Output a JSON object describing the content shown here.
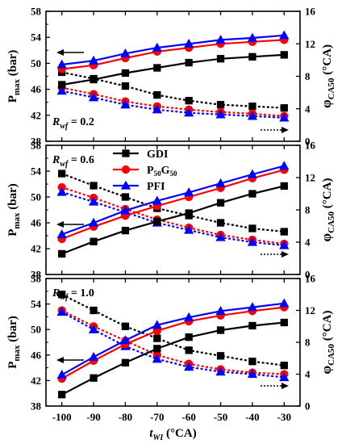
{
  "chart_data": [
    {
      "type": "line",
      "panel": 1,
      "annotation": "R",
      "annotation_sub": "wf",
      "annotation_value": " = 0.2",
      "x": [
        -100,
        -90,
        -80,
        -70,
        -60,
        -50,
        -40,
        -30
      ],
      "series": [
        {
          "name": "GDI",
          "axis": "left",
          "style": "solid",
          "color": "#000000",
          "marker": "square",
          "values": [
            46.7,
            47.5,
            48.5,
            49.3,
            50.1,
            50.7,
            51.0,
            51.3
          ]
        },
        {
          "name": "P50G50",
          "axis": "left",
          "style": "solid",
          "color": "#ff0000",
          "marker": "circle",
          "values": [
            49.1,
            49.7,
            50.8,
            51.8,
            52.4,
            53.0,
            53.3,
            53.6
          ]
        },
        {
          "name": "PFI",
          "axis": "left",
          "style": "solid",
          "color": "#0000ff",
          "marker": "triangle",
          "values": [
            49.8,
            50.4,
            51.5,
            52.4,
            53.0,
            53.6,
            53.9,
            54.3
          ]
        },
        {
          "name": "GDI",
          "axis": "right",
          "style": "dotted",
          "color": "#000000",
          "marker": "square",
          "values": [
            8.5,
            7.7,
            6.8,
            5.7,
            5.0,
            4.5,
            4.3,
            4.1
          ]
        },
        {
          "name": "P50G50",
          "axis": "right",
          "style": "dotted",
          "color": "#ff0000",
          "marker": "circle",
          "values": [
            6.6,
            5.8,
            4.9,
            4.3,
            3.9,
            3.6,
            3.4,
            3.1
          ]
        },
        {
          "name": "PFI",
          "axis": "right",
          "style": "dotted",
          "color": "#0000ff",
          "marker": "triangle",
          "values": [
            6.2,
            5.4,
            4.5,
            3.9,
            3.5,
            3.3,
            3.1,
            2.9
          ]
        }
      ],
      "ylim_left": [
        38,
        58
      ],
      "ylim_right": [
        0,
        16
      ],
      "ylabel_left": "P",
      "ylabel_left_sub": "max",
      "ylabel_left_unit": " (bar)",
      "ylabel_right": "φ",
      "ylabel_right_sub": "CA50",
      "ylabel_right_unit": " (°CA)"
    },
    {
      "type": "line",
      "panel": 2,
      "annotation": "R",
      "annotation_sub": "wf",
      "annotation_value": " = 0.6",
      "x": [
        -100,
        -90,
        -80,
        -70,
        -60,
        -50,
        -40,
        -30
      ],
      "series": [
        {
          "name": "GDI",
          "axis": "left",
          "style": "solid",
          "color": "#000000",
          "marker": "square",
          "values": [
            41.2,
            43.1,
            44.8,
            46.2,
            47.5,
            49.1,
            50.5,
            51.7
          ]
        },
        {
          "name": "P50G50",
          "axis": "left",
          "style": "solid",
          "color": "#ff0000",
          "marker": "circle",
          "values": [
            43.5,
            45.4,
            47.1,
            48.6,
            50.0,
            51.4,
            52.9,
            54.2
          ]
        },
        {
          "name": "PFI",
          "axis": "left",
          "style": "solid",
          "color": "#0000ff",
          "marker": "triangle",
          "values": [
            44.2,
            46.0,
            47.9,
            49.4,
            50.7,
            52.1,
            53.5,
            54.8
          ]
        },
        {
          "name": "GDI",
          "axis": "right",
          "style": "dotted",
          "color": "#000000",
          "marker": "square",
          "values": [
            12.5,
            11.0,
            9.6,
            8.2,
            7.3,
            6.4,
            5.7,
            5.3
          ]
        },
        {
          "name": "P50G50",
          "axis": "right",
          "style": "dotted",
          "color": "#ff0000",
          "marker": "circle",
          "values": [
            10.8,
            9.5,
            8.1,
            6.8,
            5.8,
            4.9,
            4.3,
            3.8
          ]
        },
        {
          "name": "PFI",
          "axis": "right",
          "style": "dotted",
          "color": "#0000ff",
          "marker": "triangle",
          "values": [
            10.2,
            9.0,
            7.7,
            6.4,
            5.5,
            4.6,
            4.0,
            3.6
          ]
        }
      ],
      "ylim_left": [
        38,
        58
      ],
      "ylim_right": [
        0,
        16
      ],
      "ylabel_left": "P",
      "ylabel_left_sub": "max",
      "ylabel_left_unit": " (bar)",
      "ylabel_right": "φ",
      "ylabel_right_sub": "CA50",
      "ylabel_right_unit": " (°CA)"
    },
    {
      "type": "line",
      "panel": 3,
      "annotation": "R",
      "annotation_sub": "wf",
      "annotation_value": " = 1.0",
      "x": [
        -100,
        -90,
        -80,
        -70,
        -60,
        -50,
        -40,
        -30
      ],
      "series": [
        {
          "name": "GDI",
          "axis": "left",
          "style": "solid",
          "color": "#000000",
          "marker": "square",
          "values": [
            39.8,
            42.4,
            44.8,
            47.0,
            48.8,
            49.9,
            50.6,
            51.1
          ]
        },
        {
          "name": "P50G50",
          "axis": "left",
          "style": "solid",
          "color": "#ff0000",
          "marker": "circle",
          "values": [
            42.3,
            45.1,
            47.7,
            49.8,
            51.3,
            52.2,
            52.9,
            53.5
          ]
        },
        {
          "name": "PFI",
          "axis": "left",
          "style": "solid",
          "color": "#0000ff",
          "marker": "triangle",
          "values": [
            42.9,
            45.7,
            48.3,
            50.7,
            51.9,
            52.9,
            53.5,
            54.1
          ]
        },
        {
          "name": "GDI",
          "axis": "right",
          "style": "dotted",
          "color": "#000000",
          "marker": "square",
          "values": [
            14.0,
            12.0,
            10.0,
            8.5,
            7.0,
            6.3,
            5.6,
            5.1
          ]
        },
        {
          "name": "P50G50",
          "axis": "right",
          "style": "dotted",
          "color": "#ff0000",
          "marker": "circle",
          "values": [
            12.0,
            10.0,
            8.2,
            6.4,
            5.3,
            4.6,
            4.2,
            4.0
          ]
        },
        {
          "name": "PFI",
          "axis": "right",
          "style": "dotted",
          "color": "#0000ff",
          "marker": "triangle",
          "values": [
            11.8,
            9.6,
            7.5,
            5.9,
            4.9,
            4.3,
            4.0,
            3.6
          ]
        }
      ],
      "ylim_left": [
        38,
        58
      ],
      "ylim_right": [
        0,
        16
      ],
      "ylabel_left": "P",
      "ylabel_left_sub": "max",
      "ylabel_left_unit": " (bar)",
      "ylabel_right": "φ",
      "ylabel_right_sub": "CA50",
      "ylabel_right_unit": " (°CA)"
    }
  ],
  "xlim": [
    -105,
    -25
  ],
  "xticks": [
    "-100",
    "-90",
    "-80",
    "-70",
    "-60",
    "-50",
    "-40",
    "-30"
  ],
  "yticks_left": [
    "38",
    "42",
    "46",
    "50",
    "54",
    "58"
  ],
  "yticks_right": [
    "0",
    "4",
    "8",
    "12",
    "16"
  ],
  "xlabel": "t",
  "xlabel_sub": "WI",
  "xlabel_unit": " (°CA)",
  "legend": {
    "entries": [
      {
        "name": "GDI",
        "main": "GDI",
        "sub1": "",
        "mid": "",
        "sub2": ""
      },
      {
        "name": "P50G50",
        "main": "P",
        "sub1": "50",
        "mid": "G",
        "sub2": "50"
      },
      {
        "name": "PFI",
        "main": "PFI",
        "sub1": "",
        "mid": "",
        "sub2": ""
      }
    ],
    "panel": 2,
    "placement": "top-center"
  },
  "colors": {
    "GDI": "#000000",
    "P50G50": "#ff0000",
    "PFI": "#0000ff"
  }
}
